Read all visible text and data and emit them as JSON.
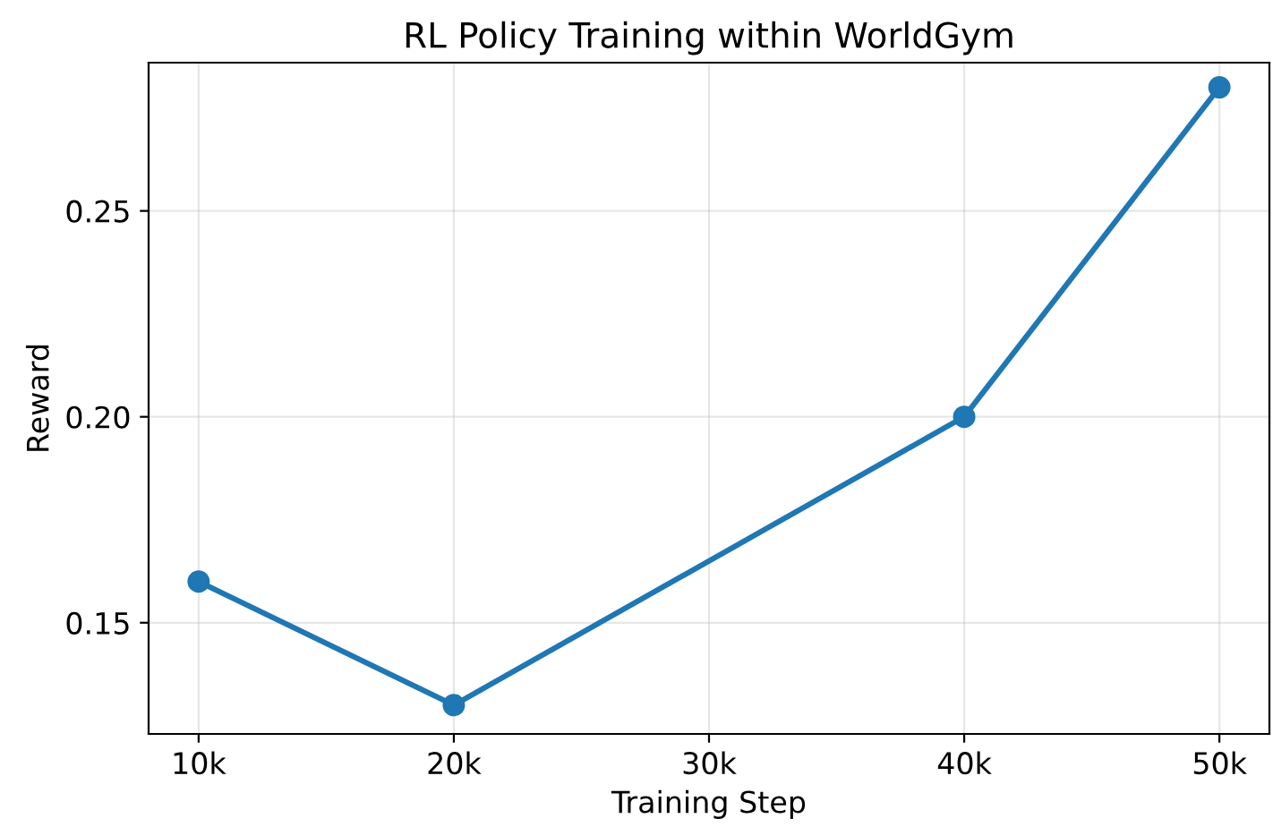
{
  "chart_data": {
    "type": "line",
    "title": "RL Policy Training within WorldGym",
    "xlabel": "Training Step",
    "ylabel": "Reward",
    "x": [
      10000,
      20000,
      40000,
      50000
    ],
    "series": [
      {
        "color": "#1f77b4",
        "values": [
          0.16,
          0.13,
          0.2,
          0.28
        ]
      }
    ],
    "xlim": [
      8040,
      51960
    ],
    "xticks": [
      {
        "value": 10000,
        "label": "10k"
      },
      {
        "value": 20000,
        "label": "20k"
      },
      {
        "value": 30000,
        "label": "30k"
      },
      {
        "value": 40000,
        "label": "40k"
      },
      {
        "value": 50000,
        "label": "50k"
      }
    ],
    "ylim": [
      0.123,
      0.286
    ],
    "yticks": [
      {
        "value": 0.15,
        "label": "0.15"
      },
      {
        "value": 0.2,
        "label": "0.20"
      },
      {
        "value": 0.25,
        "label": "0.25"
      }
    ],
    "grid": true,
    "marker": "circle",
    "line_style": "solid"
  }
}
